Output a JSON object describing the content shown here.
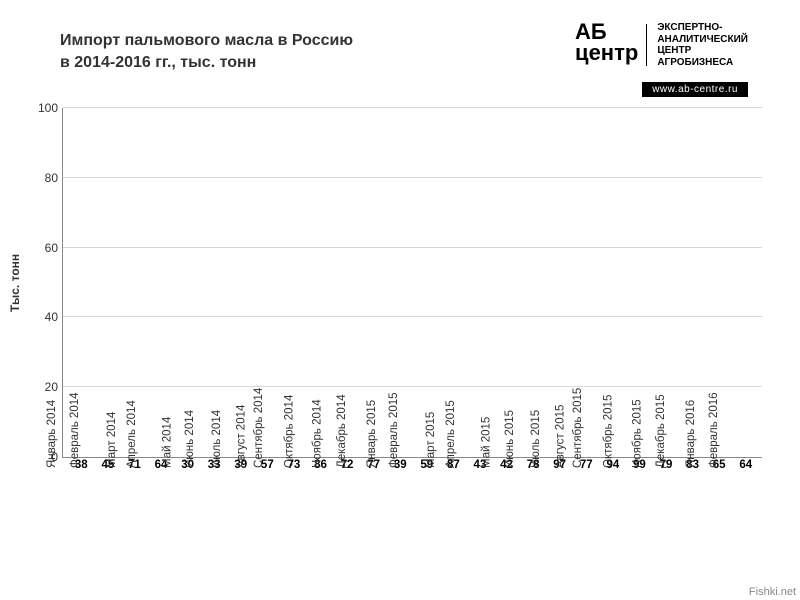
{
  "header": {
    "title_line1": "Импорт пальмового масла в Россию",
    "title_line2": "в 2014-2016 гг., тыс. тонн",
    "title_fontsize": 16,
    "title_color": "#333333",
    "logo_mark_top": "АБ",
    "logo_mark_bottom": "центр",
    "logo_mark_fontsize": 22,
    "logo_text_l1": "ЭКСПЕРТНО-",
    "logo_text_l2": "АНАЛИТИЧЕСКИЙ",
    "logo_text_l3": "ЦЕНТР",
    "logo_text_l4": "АГРОБИЗНЕСА",
    "logo_text_fontsize": 10,
    "logo_url": "www.ab-centre.ru",
    "logo_url_fontsize": 10
  },
  "chart": {
    "type": "bar",
    "ylabel": "Тыс. тонн",
    "ylabel_fontsize": 12,
    "ylim_min": 0,
    "ylim_max": 100,
    "ytick_step": 20,
    "yticks": [
      0,
      20,
      40,
      60,
      80,
      100
    ],
    "tick_fontsize": 12,
    "xtick_fontsize": 11.5,
    "value_label_fontsize": 11.5,
    "bar_color": "#ed7d31",
    "grid_color": "#d9d9d9",
    "axis_color": "#888888",
    "background_color": "#ffffff",
    "bar_width_ratio": 0.86,
    "categories": [
      "Январь 2014",
      "Февраль 2014",
      "Март 2014",
      "Апрель 2014",
      "Май 2014",
      "Июнь 2014",
      "Июль 2014",
      "Август 2014",
      "Сентябрь 2014",
      "Октябрь 2014",
      "Ноябрь 2014",
      "Декабрь 2014",
      "Январь 2015",
      "Февраль 2015",
      "Март 2015",
      "Апрель 2015",
      "Май 2015",
      "Июнь 2015",
      "Июль 2015",
      "Август 2015",
      "Сентябрь 2015",
      "Октябрь 2015",
      "Ноябрь 2015",
      "Декабрь 2015",
      "Январь 2016",
      "Февраль 2016"
    ],
    "values": [
      38,
      45,
      71,
      64,
      30,
      33,
      39,
      57,
      73,
      86,
      72,
      77,
      39,
      59,
      87,
      43,
      42,
      78,
      97,
      77,
      94,
      99,
      79,
      83,
      65,
      64
    ]
  },
  "watermark": "Fishki.net"
}
